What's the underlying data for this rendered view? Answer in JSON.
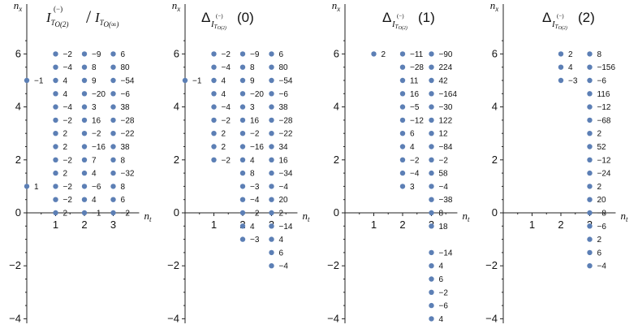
{
  "chart_data": [
    {
      "type": "scatter",
      "title": "I_{T_{O(2)}}^{(−)} / I_{T_{O(∞)}}",
      "xlabel": "n_t",
      "ylabel": "n_x",
      "xlim": [
        0,
        3.9
      ],
      "ylim": [
        -4,
        7
      ],
      "x_ticks": [
        "1",
        "2",
        "3"
      ],
      "y_ticks": [
        "−4",
        "−2",
        "0",
        "2",
        "4",
        "6"
      ],
      "points": [
        {
          "x": 0,
          "y": 5,
          "label": "−1"
        },
        {
          "x": 0,
          "y": 1,
          "label": "1"
        },
        {
          "x": 1,
          "y": 6,
          "label": "−2"
        },
        {
          "x": 1,
          "y": 5.5,
          "label": "−4"
        },
        {
          "x": 1,
          "y": 5,
          "label": "4"
        },
        {
          "x": 1,
          "y": 4.5,
          "label": "4"
        },
        {
          "x": 1,
          "y": 4,
          "label": "−4"
        },
        {
          "x": 1,
          "y": 3.5,
          "label": "−2"
        },
        {
          "x": 1,
          "y": 3,
          "label": "2"
        },
        {
          "x": 1,
          "y": 2.5,
          "label": "2"
        },
        {
          "x": 1,
          "y": 2,
          "label": "−2"
        },
        {
          "x": 1,
          "y": 1.5,
          "label": "2"
        },
        {
          "x": 1,
          "y": 1,
          "label": "−2"
        },
        {
          "x": 1,
          "y": 0.5,
          "label": "−2"
        },
        {
          "x": 1,
          "y": 0,
          "label": "2"
        },
        {
          "x": 2,
          "y": 6,
          "label": "−9"
        },
        {
          "x": 2,
          "y": 5.5,
          "label": "8"
        },
        {
          "x": 2,
          "y": 5,
          "label": "9"
        },
        {
          "x": 2,
          "y": 4.5,
          "label": "−20"
        },
        {
          "x": 2,
          "y": 4,
          "label": "3"
        },
        {
          "x": 2,
          "y": 3.5,
          "label": "16"
        },
        {
          "x": 2,
          "y": 3,
          "label": "−2"
        },
        {
          "x": 2,
          "y": 2.5,
          "label": "−16"
        },
        {
          "x": 2,
          "y": 2,
          "label": "7"
        },
        {
          "x": 2,
          "y": 1.5,
          "label": "4"
        },
        {
          "x": 2,
          "y": 1,
          "label": "−6"
        },
        {
          "x": 2,
          "y": 0.5,
          "label": "4"
        },
        {
          "x": 2,
          "y": 0,
          "label": "−1"
        },
        {
          "x": 3,
          "y": 6,
          "label": "6"
        },
        {
          "x": 3,
          "y": 5.5,
          "label": "80"
        },
        {
          "x": 3,
          "y": 5,
          "label": "−54"
        },
        {
          "x": 3,
          "y": 4.5,
          "label": "−6"
        },
        {
          "x": 3,
          "y": 4,
          "label": "38"
        },
        {
          "x": 3,
          "y": 3.5,
          "label": "−28"
        },
        {
          "x": 3,
          "y": 3,
          "label": "−22"
        },
        {
          "x": 3,
          "y": 2.5,
          "label": "38"
        },
        {
          "x": 3,
          "y": 2,
          "label": "8"
        },
        {
          "x": 3,
          "y": 1.5,
          "label": "−32"
        },
        {
          "x": 3,
          "y": 1,
          "label": "8"
        },
        {
          "x": 3,
          "y": 0.5,
          "label": "6"
        },
        {
          "x": 3,
          "y": 0,
          "label": "−2"
        }
      ]
    },
    {
      "type": "scatter",
      "title": "Δ_{I_{T_{O(2)}}^{(−)}} (0)",
      "xlabel": "n_t",
      "ylabel": "n_x",
      "xlim": [
        0,
        3.9
      ],
      "ylim": [
        -4,
        7
      ],
      "x_ticks": [
        "1",
        "2",
        "3"
      ],
      "y_ticks": [
        "−4",
        "−2",
        "0",
        "2",
        "4",
        "6"
      ],
      "points": [
        {
          "x": 0,
          "y": 5,
          "label": "−1"
        },
        {
          "x": 1,
          "y": 6,
          "label": "−2"
        },
        {
          "x": 1,
          "y": 5.5,
          "label": "−4"
        },
        {
          "x": 1,
          "y": 5,
          "label": "4"
        },
        {
          "x": 1,
          "y": 4.5,
          "label": "4"
        },
        {
          "x": 1,
          "y": 4,
          "label": "−4"
        },
        {
          "x": 1,
          "y": 3.5,
          "label": "−2"
        },
        {
          "x": 1,
          "y": 3,
          "label": "2"
        },
        {
          "x": 1,
          "y": 2.5,
          "label": "2"
        },
        {
          "x": 1,
          "y": 2,
          "label": "−2"
        },
        {
          "x": 2,
          "y": 6,
          "label": "−9"
        },
        {
          "x": 2,
          "y": 5.5,
          "label": "8"
        },
        {
          "x": 2,
          "y": 5,
          "label": "9"
        },
        {
          "x": 2,
          "y": 4.5,
          "label": "−20"
        },
        {
          "x": 2,
          "y": 4,
          "label": "3"
        },
        {
          "x": 2,
          "y": 3.5,
          "label": "16"
        },
        {
          "x": 2,
          "y": 3,
          "label": "−2"
        },
        {
          "x": 2,
          "y": 2.5,
          "label": "−16"
        },
        {
          "x": 2,
          "y": 2,
          "label": "4"
        },
        {
          "x": 2,
          "y": 1.5,
          "label": "8"
        },
        {
          "x": 2,
          "y": 1,
          "label": "−3"
        },
        {
          "x": 2,
          "y": 0.5,
          "label": "−4"
        },
        {
          "x": 2,
          "y": 0,
          "label": "−2"
        },
        {
          "x": 2,
          "y": -0.5,
          "label": "4"
        },
        {
          "x": 2,
          "y": -1,
          "label": "−3"
        },
        {
          "x": 3,
          "y": 6,
          "label": "6"
        },
        {
          "x": 3,
          "y": 5.5,
          "label": "80"
        },
        {
          "x": 3,
          "y": 5,
          "label": "−54"
        },
        {
          "x": 3,
          "y": 4.5,
          "label": "−6"
        },
        {
          "x": 3,
          "y": 4,
          "label": "38"
        },
        {
          "x": 3,
          "y": 3.5,
          "label": "−28"
        },
        {
          "x": 3,
          "y": 3,
          "label": "−22"
        },
        {
          "x": 3,
          "y": 2.5,
          "label": "34"
        },
        {
          "x": 3,
          "y": 2,
          "label": "16"
        },
        {
          "x": 3,
          "y": 1.5,
          "label": "−34"
        },
        {
          "x": 3,
          "y": 1,
          "label": "−4"
        },
        {
          "x": 3,
          "y": 0.5,
          "label": "20"
        },
        {
          "x": 3,
          "y": 0,
          "label": "2"
        },
        {
          "x": 3,
          "y": -0.5,
          "label": "−14"
        },
        {
          "x": 3,
          "y": -1,
          "label": "4"
        },
        {
          "x": 3,
          "y": -1.5,
          "label": "6"
        },
        {
          "x": 3,
          "y": -2,
          "label": "−4"
        }
      ]
    },
    {
      "type": "scatter",
      "title": "Δ_{I_{T_{O(2)}}^{(−)}} (1)",
      "xlabel": "n_t",
      "ylabel": "n_x",
      "xlim": [
        0,
        3.9
      ],
      "ylim": [
        -4,
        7
      ],
      "x_ticks": [
        "1",
        "2",
        "3"
      ],
      "y_ticks": [
        "−4",
        "−2",
        "0",
        "2",
        "4",
        "6"
      ],
      "points": [
        {
          "x": 1,
          "y": 6,
          "label": "2"
        },
        {
          "x": 2,
          "y": 6,
          "label": "−11"
        },
        {
          "x": 2,
          "y": 5.5,
          "label": "−28"
        },
        {
          "x": 2,
          "y": 5,
          "label": "11"
        },
        {
          "x": 2,
          "y": 4.5,
          "label": "16"
        },
        {
          "x": 2,
          "y": 4,
          "label": "−5"
        },
        {
          "x": 2,
          "y": 3.5,
          "label": "−12"
        },
        {
          "x": 2,
          "y": 3,
          "label": "6"
        },
        {
          "x": 2,
          "y": 2.5,
          "label": "4"
        },
        {
          "x": 2,
          "y": 2,
          "label": "−2"
        },
        {
          "x": 2,
          "y": 1.5,
          "label": "−4"
        },
        {
          "x": 2,
          "y": 1,
          "label": "3"
        },
        {
          "x": 3,
          "y": 6,
          "label": "−90"
        },
        {
          "x": 3,
          "y": 5.5,
          "label": "224"
        },
        {
          "x": 3,
          "y": 5,
          "label": "42"
        },
        {
          "x": 3,
          "y": 4.5,
          "label": "−164"
        },
        {
          "x": 3,
          "y": 4,
          "label": "−30"
        },
        {
          "x": 3,
          "y": 3.5,
          "label": "122"
        },
        {
          "x": 3,
          "y": 3,
          "label": "12"
        },
        {
          "x": 3,
          "y": 2.5,
          "label": "−84"
        },
        {
          "x": 3,
          "y": 2,
          "label": "−2"
        },
        {
          "x": 3,
          "y": 1.5,
          "label": "58"
        },
        {
          "x": 3,
          "y": 1,
          "label": "−4"
        },
        {
          "x": 3,
          "y": 0.5,
          "label": "−38"
        },
        {
          "x": 3,
          "y": 0,
          "label": "8"
        },
        {
          "x": 3,
          "y": -0.5,
          "label": "18"
        },
        {
          "x": 3,
          "y": -1.5,
          "label": "−14"
        },
        {
          "x": 3,
          "y": -2,
          "label": "4"
        },
        {
          "x": 3,
          "y": -2.5,
          "label": "6"
        },
        {
          "x": 3,
          "y": -3,
          "label": "−2"
        },
        {
          "x": 3,
          "y": -3.5,
          "label": "−6"
        },
        {
          "x": 3,
          "y": -4,
          "label": "4"
        }
      ]
    },
    {
      "type": "scatter",
      "title": "Δ_{I_{T_{O(2)}}^{(−)}} (2)",
      "xlabel": "n_t",
      "ylabel": "n_x",
      "xlim": [
        0,
        3.9
      ],
      "ylim": [
        -4,
        7
      ],
      "x_ticks": [
        "1",
        "2",
        "3"
      ],
      "y_ticks": [
        "−4",
        "−2",
        "0",
        "2",
        "4",
        "6"
      ],
      "points": [
        {
          "x": 2,
          "y": 6,
          "label": "2"
        },
        {
          "x": 2,
          "y": 5.5,
          "label": "4"
        },
        {
          "x": 2,
          "y": 5,
          "label": "−3"
        },
        {
          "x": 3,
          "y": 6,
          "label": "8"
        },
        {
          "x": 3,
          "y": 5.5,
          "label": "−156"
        },
        {
          "x": 3,
          "y": 5,
          "label": "−6"
        },
        {
          "x": 3,
          "y": 4.5,
          "label": "116"
        },
        {
          "x": 3,
          "y": 4,
          "label": "−12"
        },
        {
          "x": 3,
          "y": 3.5,
          "label": "−68"
        },
        {
          "x": 3,
          "y": 3,
          "label": "2"
        },
        {
          "x": 3,
          "y": 2.5,
          "label": "52"
        },
        {
          "x": 3,
          "y": 2,
          "label": "−12"
        },
        {
          "x": 3,
          "y": 1.5,
          "label": "−24"
        },
        {
          "x": 3,
          "y": 1,
          "label": "2"
        },
        {
          "x": 3,
          "y": 0.5,
          "label": "20"
        },
        {
          "x": 3,
          "y": 0,
          "label": "−8"
        },
        {
          "x": 3,
          "y": -0.5,
          "label": "−6"
        },
        {
          "x": 3,
          "y": -1,
          "label": "2"
        },
        {
          "x": 3,
          "y": -1.5,
          "label": "6"
        },
        {
          "x": 3,
          "y": -2,
          "label": "−4"
        }
      ]
    }
  ],
  "colors": {
    "point": "#5c7fb5",
    "axis": "#222222",
    "text": "#111111"
  },
  "text": {
    "n": "n",
    "t": "t",
    "x": "x",
    "I": "I",
    "T": "T",
    "o2": "O(2)",
    "oinf": "O(∞)",
    "minus": "(−)",
    "slash": "/",
    "delta": "Δ",
    "arg0": "(0)",
    "arg1": "(1)",
    "arg2": "(2)"
  }
}
